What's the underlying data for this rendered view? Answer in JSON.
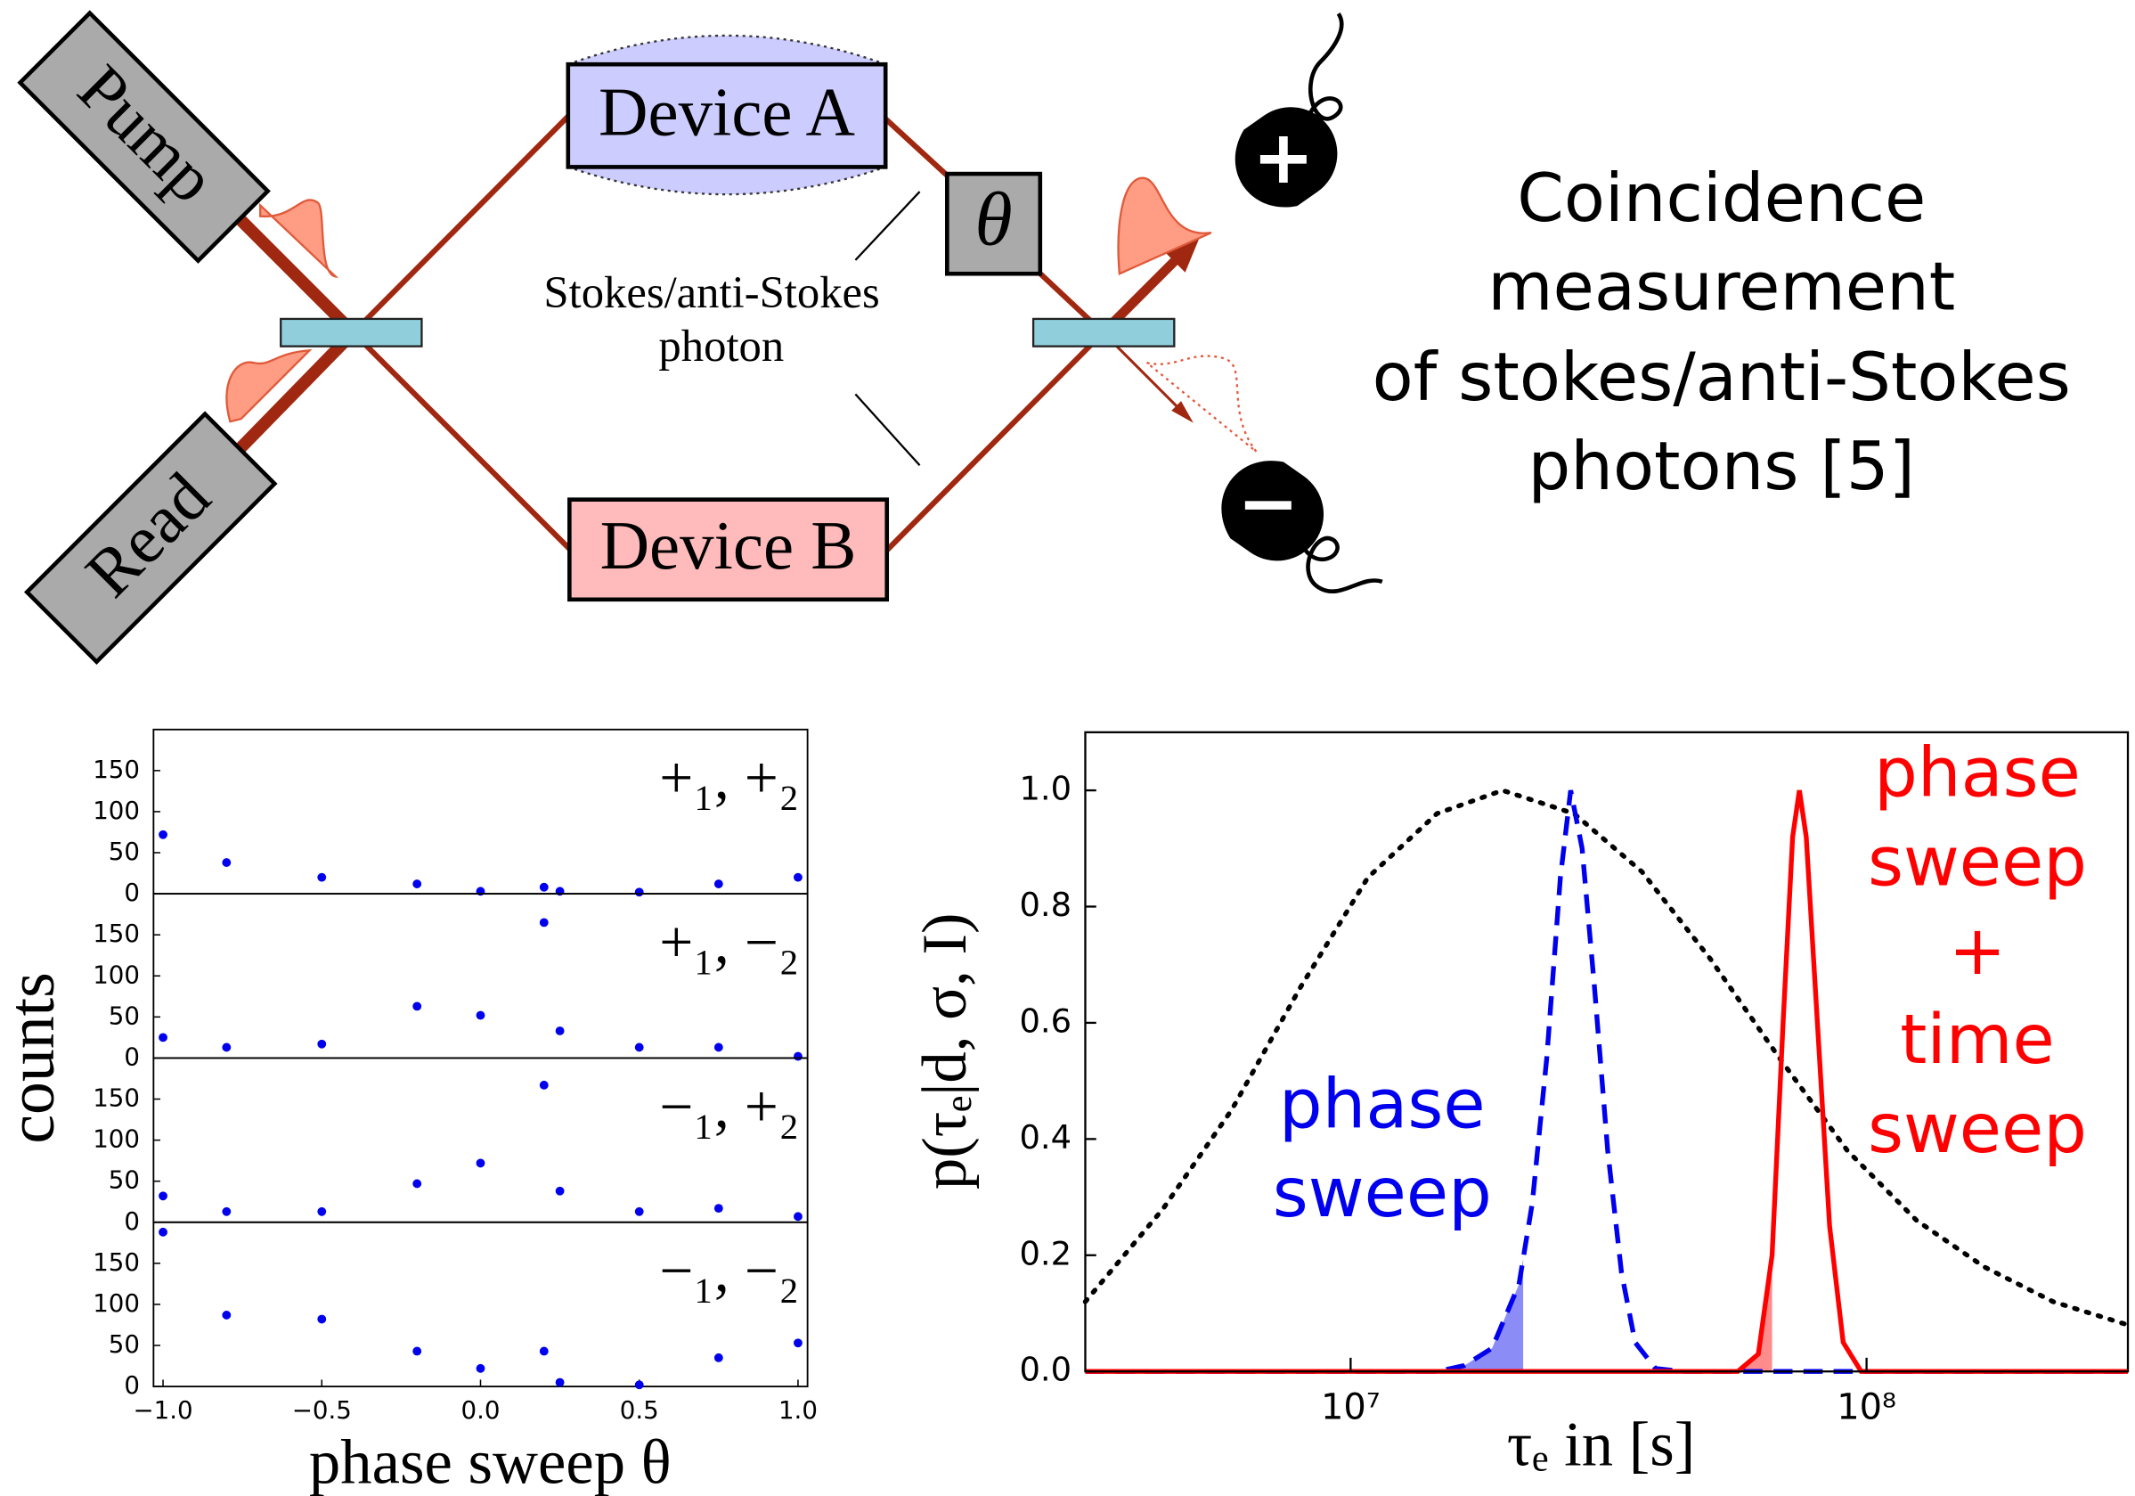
{
  "diagram": {
    "pump": "Pump",
    "read": "Read",
    "device_a": "Device A",
    "device_b": "Device B",
    "theta": "θ",
    "photon_label": [
      "Stokes/anti-Stokes",
      "photon"
    ],
    "detector_plus": "+",
    "detector_minus": "−",
    "caption": [
      "Coincidence",
      "measurement",
      "of stokes/anti-Stokes",
      "photons [5]"
    ]
  },
  "chart_data": [
    {
      "type": "scatter",
      "title": "+₁, +₂",
      "ylabel": "counts",
      "color": "#0000ee",
      "x": [
        -1.0,
        -0.8,
        -0.5,
        -0.2,
        0.0,
        0.2,
        0.25,
        0.5,
        0.75,
        1.0
      ],
      "values": [
        72,
        38,
        20,
        12,
        3,
        8,
        3,
        2,
        12,
        20
      ],
      "xlim": [
        -1.03,
        1.03
      ],
      "ylim": [
        0,
        200
      ],
      "yticks": [
        0,
        50,
        100,
        150
      ]
    },
    {
      "type": "scatter",
      "title": "+₁, −₂",
      "color": "#0000ee",
      "x": [
        -1.0,
        -0.8,
        -0.5,
        -0.2,
        0.0,
        0.2,
        0.25,
        0.5,
        0.75,
        1.0
      ],
      "values": [
        25,
        13,
        17,
        63,
        52,
        165,
        33,
        13,
        13,
        2
      ],
      "xlim": [
        -1.03,
        1.03
      ],
      "ylim": [
        0,
        200
      ],
      "yticks": [
        0,
        50,
        100,
        150
      ]
    },
    {
      "type": "scatter",
      "title": "−₁, +₂",
      "color": "#0000ee",
      "x": [
        -1.0,
        -0.8,
        -0.5,
        -0.2,
        0.0,
        0.2,
        0.25,
        0.5,
        0.75,
        1.0
      ],
      "values": [
        32,
        13,
        13,
        47,
        72,
        167,
        38,
        13,
        17,
        7
      ],
      "xlim": [
        -1.03,
        1.03
      ],
      "ylim": [
        0,
        200
      ],
      "yticks": [
        0,
        50,
        100,
        150
      ]
    },
    {
      "type": "scatter",
      "title": "−₁, −₂",
      "xlabel": "phase sweep θ",
      "color": "#0000ee",
      "x": [
        -1.0,
        -0.8,
        -0.5,
        -0.2,
        0.0,
        0.2,
        0.25,
        0.5,
        0.75,
        1.0
      ],
      "values": [
        188,
        87,
        82,
        43,
        22,
        43,
        5,
        2,
        35,
        53
      ],
      "xlim": [
        -1.03,
        1.03
      ],
      "ylim": [
        0,
        200
      ],
      "yticks": [
        0,
        50,
        100,
        150
      ],
      "xticks": [
        {
          "value": -1.0,
          "label": "−1.0"
        },
        {
          "value": -0.5,
          "label": "−0.5"
        },
        {
          "value": 0,
          "label": "0.0"
        },
        0.5,
        {
          "value": 1,
          "label": "1.0"
        }
      ]
    },
    {
      "type": "line",
      "xlabel": "τₑ in [s]",
      "ylabel": "p(τₑ|d, σ, I)",
      "xscale": "log",
      "xlim": [
        3060000,
        321000000
      ],
      "ylim": [
        0,
        1.1
      ],
      "xticks": [
        {
          "value": 10000000,
          "label": "10⁷"
        },
        {
          "value": 100000000,
          "label": "10⁸"
        }
      ],
      "yticks": [
        {
          "value": 0,
          "label": "0.0"
        },
        0.2,
        0.4,
        0.6,
        0.8,
        {
          "value": 1,
          "label": "1.0"
        }
      ],
      "series": [
        {
          "color": "#000000",
          "style": "dotted",
          "x": [
            3060000,
            4330000,
            5880000,
            7980000,
            10800000,
            14700000,
            19700000,
            27100000,
            36700000,
            49800000,
            67700000,
            91800000,
            125000000,
            169000000,
            230000000,
            321000000
          ],
          "values": [
            0.12,
            0.28,
            0.45,
            0.66,
            0.85,
            0.96,
            1.0,
            0.96,
            0.86,
            0.71,
            0.54,
            0.38,
            0.26,
            0.18,
            0.12,
            0.08
          ]
        },
        {
          "color": "#0000ee",
          "style": "dashed",
          "shade_to": 21600000,
          "x": [
            3060000,
            14700000,
            16600000,
            18800000,
            21200000,
            22500000,
            24000000,
            25500000,
            26700000,
            28100000,
            29700000,
            31500000,
            33500000,
            35600000,
            39000000,
            44100000,
            321000000
          ],
          "values": [
            0,
            0,
            0.01,
            0.04,
            0.15,
            0.29,
            0.54,
            0.85,
            1.0,
            0.9,
            0.66,
            0.38,
            0.17,
            0.05,
            0.005,
            0,
            0
          ]
        },
        {
          "color": "#ff0000",
          "style": "solid",
          "shade_to": 65600000,
          "x": [
            3060000,
            56300000,
            61700000,
            65600000,
            68900000,
            71900000,
            74100000,
            76400000,
            80300000,
            84800000,
            90100000,
            97600000,
            321000000
          ],
          "values": [
            0,
            0,
            0.03,
            0.2,
            0.6,
            0.92,
            1.0,
            0.92,
            0.6,
            0.25,
            0.05,
            0,
            0
          ]
        }
      ],
      "annotations": [
        {
          "lines": [
            "phase",
            "sweep"
          ],
          "color": "#0000ee"
        },
        {
          "lines": [
            "phase",
            "sweep",
            "+",
            "time",
            "sweep"
          ],
          "color": "#ff0000"
        }
      ]
    }
  ]
}
